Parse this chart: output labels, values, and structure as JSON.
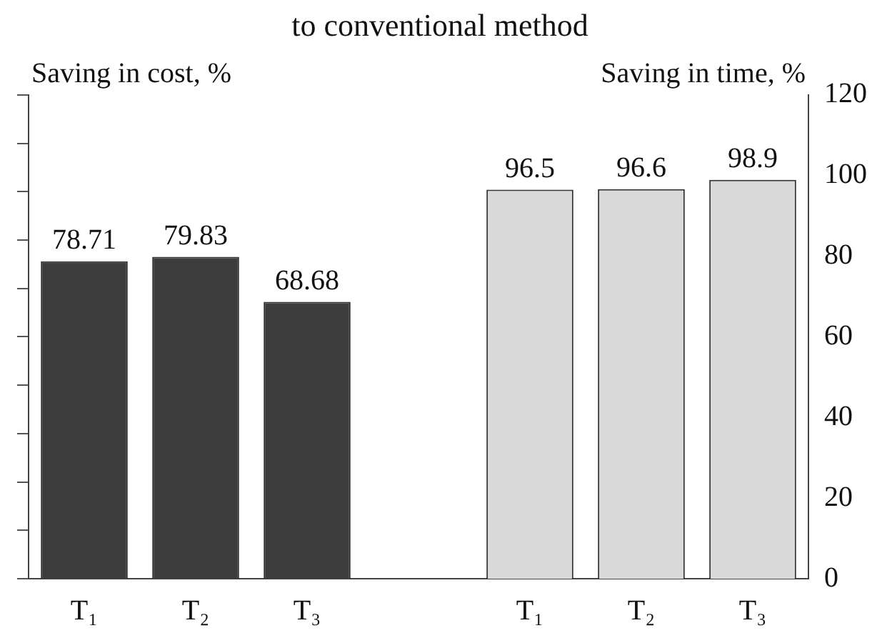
{
  "chart_data": {
    "type": "bar",
    "title": "to conventional method",
    "ylabel": "Saving in cost, %",
    "y2label": "Saving in time, %",
    "categories": [
      "T₁",
      "T₂",
      "T₃",
      null,
      "T₁",
      "T₂",
      "T₃"
    ],
    "series": [
      {
        "color": "#3c3c3c",
        "axis": "y2",
        "values": [
          78.71,
          79.83,
          68.68,
          null,
          null,
          null,
          null
        ]
      },
      {
        "color": "#d9d9d9",
        "axis": "y2",
        "values": [
          null,
          null,
          null,
          null,
          96.5,
          96.6,
          98.9
        ]
      }
    ],
    "y2lim": [
      0,
      120
    ],
    "y2ticks": [
      0,
      20,
      40,
      60,
      80,
      100,
      120
    ],
    "data_labels": true,
    "grid": false,
    "legend": false
  }
}
